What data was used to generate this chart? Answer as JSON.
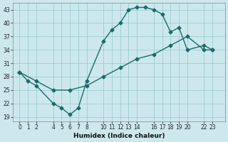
{
  "xlabel": "Humidex (Indice chaleur)",
  "bg_color": "#cce8ec",
  "grid_color": "#9ecdd4",
  "line_color": "#1a6b6b",
  "ylim": [
    18,
    44.5
  ],
  "xlim": [
    -0.8,
    24.5
  ],
  "yticks": [
    19,
    22,
    25,
    28,
    31,
    34,
    37,
    40,
    43
  ],
  "xticks": [
    0,
    1,
    2,
    4,
    5,
    6,
    7,
    8,
    10,
    11,
    12,
    13,
    14,
    16,
    17,
    18,
    19,
    20,
    22,
    23
  ],
  "curve1_x": [
    0,
    1,
    2,
    4,
    5,
    6,
    7,
    8,
    10,
    11,
    12,
    13,
    14,
    15,
    16,
    17,
    18,
    19,
    20,
    22,
    23
  ],
  "curve1_y": [
    29,
    27,
    26,
    22,
    21,
    19.5,
    21,
    27,
    36,
    38.5,
    40,
    43,
    43.5,
    43.5,
    43,
    42,
    38,
    39,
    34,
    35,
    34
  ],
  "curve2_x": [
    0,
    2,
    4,
    6,
    8,
    10,
    12,
    14,
    16,
    18,
    20,
    22,
    23
  ],
  "curve2_y": [
    29,
    27,
    25,
    25,
    26,
    28,
    30,
    32,
    33,
    35,
    37,
    34,
    34
  ]
}
